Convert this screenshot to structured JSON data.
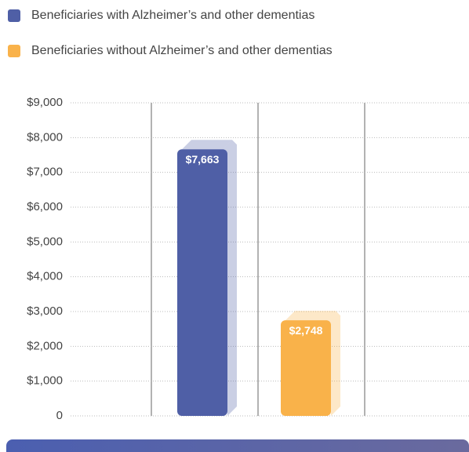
{
  "chart_data": {
    "type": "bar",
    "categories": [
      null
    ],
    "series": [
      {
        "name": "Beneficiaries with Alzheimer’s and other dementias",
        "color": "#4f5fa6",
        "values": [
          7663
        ],
        "value_labels": [
          "$7,663"
        ]
      },
      {
        "name": "Beneficiaries without Alzheimer’s and other dementias",
        "color": "#f9b24a",
        "values": [
          2748
        ],
        "value_labels": [
          "$2,748"
        ]
      }
    ],
    "ylim": [
      0,
      9000
    ],
    "yticks": [
      0,
      {
        "value": 1000,
        "label": "$1,000"
      },
      {
        "value": 2000,
        "label": "$2,000"
      },
      {
        "value": 3000,
        "label": "$3,000"
      },
      {
        "value": 4000,
        "label": "$4,000"
      },
      {
        "value": 5000,
        "label": "$5,000"
      },
      {
        "value": 6000,
        "label": "$6,000"
      },
      {
        "value": 7000,
        "label": "$7,000"
      },
      {
        "value": 8000,
        "label": "$8,000"
      },
      {
        "value": 9000,
        "label": "$9,000"
      }
    ],
    "grid": true
  }
}
